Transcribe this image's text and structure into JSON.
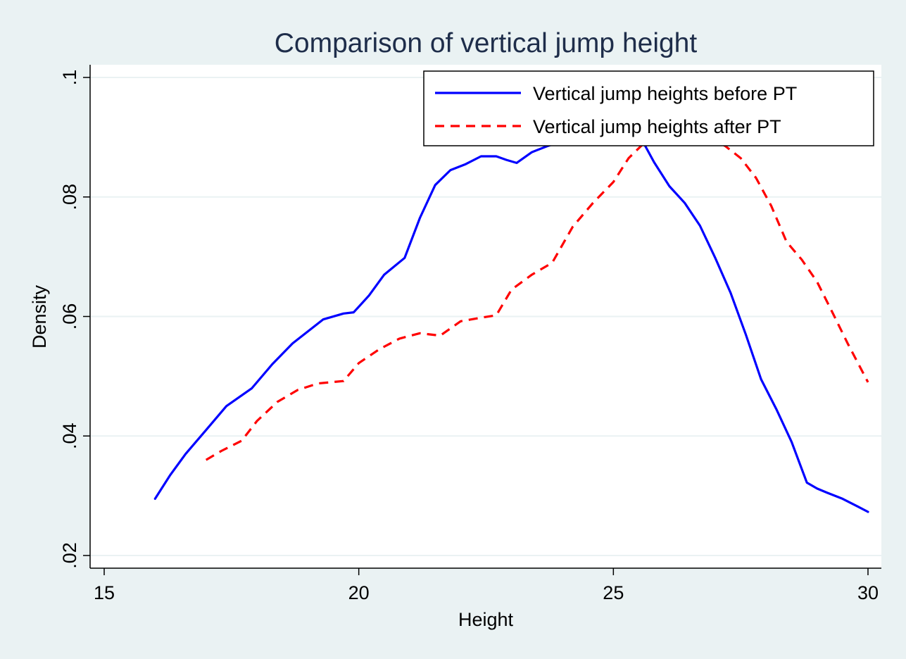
{
  "chart_data": {
    "type": "line",
    "title": "Comparison of vertical jump height",
    "xlabel": "Height",
    "ylabel": "Density",
    "xlim": [
      15,
      30
    ],
    "ylim": [
      0.02,
      0.1
    ],
    "xticks": [
      15,
      20,
      25,
      30
    ],
    "xtick_labels": [
      "15",
      "20",
      "25",
      "30"
    ],
    "yticks": [
      0.02,
      0.04,
      0.06,
      0.08,
      0.1
    ],
    "ytick_labels": [
      ".02",
      ".04",
      ".06",
      ".08",
      ".1"
    ],
    "grid": true,
    "legend_position": "top-right",
    "colors": {
      "plot_background": "#ffffff",
      "outer_background": "#eaf2f3",
      "grid": "#eaf2f3",
      "title": "#1e2d4a"
    },
    "series": [
      {
        "name": "Vertical jump heights before PT",
        "color": "#0000ff",
        "style": "solid",
        "x": [
          16.0,
          16.3,
          16.6,
          17.0,
          17.4,
          17.9,
          18.3,
          18.7,
          19.0,
          19.3,
          19.7,
          19.9,
          20.2,
          20.5,
          20.9,
          21.2,
          21.5,
          21.8,
          22.1,
          22.4,
          22.7,
          22.9,
          23.1,
          23.4,
          23.7,
          24.0,
          24.3,
          24.6,
          24.9,
          25.2,
          25.5,
          25.8,
          26.1,
          26.4,
          26.7,
          27.0,
          27.3,
          27.6,
          27.9,
          28.2,
          28.5,
          28.8,
          29.0,
          29.2,
          29.5,
          29.8,
          30.0
        ],
        "values": [
          0.0295,
          0.0335,
          0.037,
          0.041,
          0.045,
          0.048,
          0.052,
          0.0555,
          0.0575,
          0.0595,
          0.0605,
          0.0607,
          0.0635,
          0.067,
          0.0698,
          0.0765,
          0.082,
          0.0845,
          0.0855,
          0.0868,
          0.0868,
          0.0862,
          0.0857,
          0.0875,
          0.0885,
          0.0893,
          0.0897,
          0.09,
          0.0903,
          0.0905,
          0.0905,
          0.0858,
          0.0818,
          0.079,
          0.0752,
          0.0698,
          0.064,
          0.057,
          0.0495,
          0.0445,
          0.039,
          0.0322,
          0.0312,
          0.0305,
          0.0295,
          0.0282,
          0.0273
        ]
      },
      {
        "name": "Vertical jump heights after PT",
        "color": "#ff0000",
        "style": "dashed",
        "x": [
          17.0,
          17.3,
          17.7,
          18.0,
          18.4,
          18.8,
          19.2,
          19.7,
          20.0,
          20.4,
          20.8,
          21.2,
          21.6,
          22.0,
          22.4,
          22.7,
          23.0,
          23.4,
          23.8,
          24.2,
          24.6,
          25.0,
          25.3,
          25.6,
          26.0,
          26.4,
          26.8,
          27.2,
          27.5,
          27.8,
          28.1,
          28.4,
          28.7,
          29.0,
          29.3,
          29.6,
          30.0
        ],
        "values": [
          0.036,
          0.0375,
          0.0392,
          0.0425,
          0.0457,
          0.0477,
          0.0488,
          0.0492,
          0.0522,
          0.0545,
          0.0563,
          0.0572,
          0.0568,
          0.0592,
          0.0598,
          0.0602,
          0.0645,
          0.067,
          0.069,
          0.075,
          0.079,
          0.0825,
          0.0865,
          0.089,
          0.0903,
          0.0908,
          0.0905,
          0.0885,
          0.0865,
          0.0832,
          0.0785,
          0.0725,
          0.0695,
          0.0658,
          0.0607,
          0.0555,
          0.049
        ]
      }
    ]
  }
}
